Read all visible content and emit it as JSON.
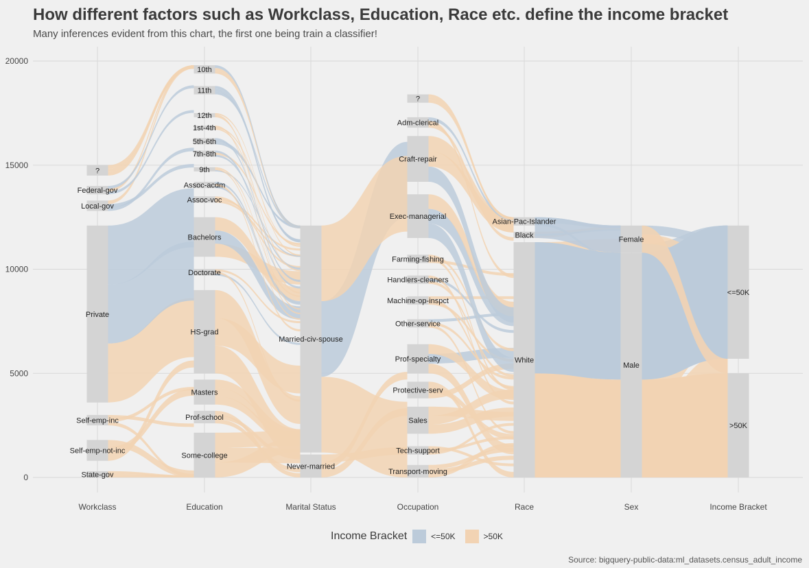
{
  "title": "How different factors such as Workclass, Education, Race etc. define the income bracket",
  "subtitle": "Many inferences evident from this chart, the first one being train a classifier!",
  "caption": "Source: bigquery-public-data:ml_datasets.census_adult_income",
  "legend": {
    "title": "Income Bracket",
    "items": [
      {
        "label": "<=50K",
        "color": "#bccbda"
      },
      {
        "label": ">50K",
        "color": "#f2d3b3"
      }
    ]
  },
  "chart_data": {
    "type": "alluvial",
    "title": "How different factors such as Workclass, Education, Race etc. define the income bracket",
    "subtitle": "Many inferences evident from this chart, the first one being train a classifier!",
    "ylim": [
      0,
      20000
    ],
    "y_ticks": [
      0,
      5000,
      10000,
      15000,
      20000
    ],
    "grid": true,
    "legend_position": "bottom",
    "fill_colors": {
      "<=50K": "#bccbda",
      ">50K": "#f2d3b3",
      "stratum": "#d4d4d4"
    },
    "axes": [
      {
        "name": "Workclass",
        "strata": [
          {
            "label": "State-gov",
            "lo": 0,
            "hi": 300
          },
          {
            "label": "Self-emp-not-inc",
            "lo": 800,
            "hi": 1800
          },
          {
            "label": "Self-emp-inc",
            "lo": 2500,
            "hi": 3000
          },
          {
            "label": "Private",
            "lo": 3600,
            "hi": 12100
          },
          {
            "label": "Local-gov",
            "lo": 12800,
            "hi": 13300
          },
          {
            "label": "Federal-gov",
            "lo": 13600,
            "hi": 14000
          },
          {
            "label": "?",
            "lo": 14500,
            "hi": 15000
          }
        ]
      },
      {
        "name": "Education",
        "strata": [
          {
            "label": "Some-college",
            "lo": 0,
            "hi": 2150
          },
          {
            "label": "Prof-school",
            "lo": 2600,
            "hi": 3200
          },
          {
            "label": "Masters",
            "lo": 3500,
            "hi": 4700
          },
          {
            "label": "HS-grad",
            "lo": 5000,
            "hi": 9000
          },
          {
            "label": "Doctorate",
            "lo": 9700,
            "hi": 10000
          },
          {
            "label": "Bachelors",
            "lo": 10600,
            "hi": 12500
          },
          {
            "label": "Assoc-voc",
            "lo": 13200,
            "hi": 13500
          },
          {
            "label": "Assoc-acdm",
            "lo": 13900,
            "hi": 14200
          },
          {
            "label": "9th",
            "lo": 14700,
            "hi": 14900
          },
          {
            "label": "7th-8th",
            "lo": 15400,
            "hi": 15700
          },
          {
            "label": "5th-6th",
            "lo": 16000,
            "hi": 16300
          },
          {
            "label": "1st-4th",
            "lo": 16700,
            "hi": 16900
          },
          {
            "label": "12th",
            "lo": 17300,
            "hi": 17500
          },
          {
            "label": "11th",
            "lo": 18400,
            "hi": 18800
          },
          {
            "label": "10th",
            "lo": 19400,
            "hi": 19800
          }
        ]
      },
      {
        "name": "Marital Status",
        "strata": [
          {
            "label": "Never-married",
            "lo": 0,
            "hi": 1100
          },
          {
            "label": "Married-civ-spouse",
            "lo": 1200,
            "hi": 12100
          }
        ]
      },
      {
        "name": "Occupation",
        "strata": [
          {
            "label": "Transport-moving",
            "lo": 0,
            "hi": 600
          },
          {
            "label": "Tech-support",
            "lo": 1100,
            "hi": 1500
          },
          {
            "label": "Sales",
            "lo": 2100,
            "hi": 3400
          },
          {
            "label": "Protective-serv",
            "lo": 3800,
            "hi": 4600
          },
          {
            "label": "Prof-specialty",
            "lo": 5000,
            "hi": 6400
          },
          {
            "label": "Other-service",
            "lo": 7200,
            "hi": 7600
          },
          {
            "label": "Machine-op-inspct",
            "lo": 8300,
            "hi": 8700
          },
          {
            "label": "Handlers-cleaners",
            "lo": 9300,
            "hi": 9700
          },
          {
            "label": "Farming-fishing",
            "lo": 10300,
            "hi": 10700
          },
          {
            "label": "Exec-managerial",
            "lo": 11500,
            "hi": 13600
          },
          {
            "label": "Craft-repair",
            "lo": 14200,
            "hi": 16400
          },
          {
            "label": "Adm-clerical",
            "lo": 16800,
            "hi": 17300
          },
          {
            "label": "?",
            "lo": 18000,
            "hi": 18400
          }
        ]
      },
      {
        "name": "Race",
        "strata": [
          {
            "label": "White",
            "lo": 0,
            "hi": 11300
          },
          {
            "label": "Black",
            "lo": 11500,
            "hi": 11800
          },
          {
            "label": "Asian-Pac-Islander",
            "lo": 12100,
            "hi": 12500
          }
        ]
      },
      {
        "name": "Sex",
        "strata": [
          {
            "label": "Male",
            "lo": 0,
            "hi": 10800
          },
          {
            "label": "Female",
            "lo": 10800,
            "hi": 12100
          }
        ]
      },
      {
        "name": "Income Bracket",
        "strata": [
          {
            "label": ">50K",
            "lo": 0,
            "hi": 5000
          },
          {
            "label": "<=50K",
            "lo": 5700,
            "hi": 12100
          }
        ]
      }
    ]
  }
}
